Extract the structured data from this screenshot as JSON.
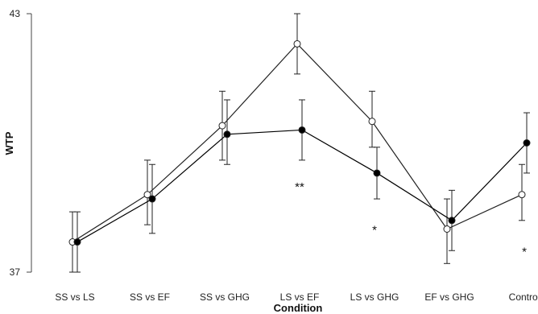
{
  "chart_data": {
    "type": "line",
    "title": "",
    "xlabel": "Condition",
    "ylabel": "WTP",
    "ylim": [
      37,
      43
    ],
    "yticks": [
      "37",
      "43"
    ],
    "categories": [
      "SS vs LS",
      "SS vs EF",
      "SS vs GHG",
      "LS vs EF",
      "LS vs GHG",
      "EF vs GHG",
      "Control"
    ],
    "grid": false,
    "series": [
      {
        "marker": "open-circle",
        "color": "#222222",
        "values": [
          37.7,
          38.8,
          40.4,
          42.3,
          40.5,
          38.0,
          38.8
        ],
        "err_low": [
          37.0,
          38.1,
          39.6,
          41.6,
          39.9,
          37.2,
          38.2
        ],
        "err_high": [
          38.4,
          39.6,
          41.2,
          43.0,
          41.2,
          38.7,
          39.5
        ]
      },
      {
        "marker": "filled-circle",
        "color": "#000000",
        "values": [
          37.7,
          38.7,
          40.2,
          40.3,
          39.3,
          38.2,
          40.0
        ],
        "err_low": [
          37.0,
          37.9,
          39.5,
          39.6,
          38.7,
          37.5,
          39.3
        ],
        "err_high": [
          38.4,
          39.5,
          41.0,
          41.0,
          39.9,
          38.9,
          40.7
        ]
      }
    ],
    "annotations": [
      {
        "category": "LS vs EF",
        "y": 39.0,
        "text": "**"
      },
      {
        "category": "LS vs GHG",
        "y": 38.0,
        "text": "*"
      },
      {
        "category": "Control",
        "y": 37.5,
        "text": "*"
      }
    ]
  }
}
